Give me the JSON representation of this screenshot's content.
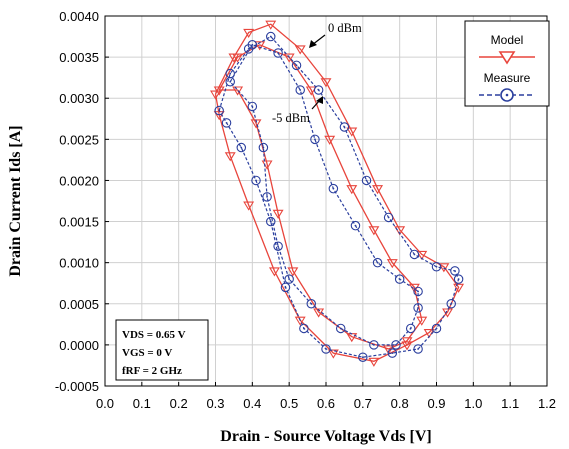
{
  "chart_data": {
    "type": "line",
    "xlabel": "Drain - Source Voltage Vds [V]",
    "ylabel": "Drain Current Ids [A]",
    "xlim": [
      0.0,
      1.2
    ],
    "ylim": [
      -0.0005,
      0.004
    ],
    "x_ticks": [
      "0.0",
      "0.1",
      "0.2",
      "0.3",
      "0.4",
      "0.5",
      "0.6",
      "0.7",
      "0.8",
      "0.9",
      "1.0",
      "1.1",
      "1.2"
    ],
    "y_ticks": [
      "0.0040",
      "0.0035",
      "0.0030",
      "0.0025",
      "0.0020",
      "0.0015",
      "0.0010",
      "0.0005",
      "0.0000",
      "-0.0005"
    ],
    "grid": true,
    "legend_position": "top-right",
    "legend": [
      {
        "label": "Model",
        "color": "#e8453c",
        "line": "solid",
        "marker": "triangle-down"
      },
      {
        "label": "Measure",
        "color": "#2b3f9e",
        "line": "dashed",
        "marker": "circle"
      }
    ],
    "annotations": [
      "0 dBm",
      "-5 dBm"
    ],
    "conditions": [
      "VDS = 0.65 V",
      "VGS = 0 V",
      "fRF = 2 GHz"
    ],
    "series": [
      {
        "name": "Model",
        "power": "0 dBm",
        "color": "#e8453c",
        "style": "solid",
        "marker": "triangle-down",
        "points": [
          [
            0.3,
            0.00305
          ],
          [
            0.35,
            0.0035
          ],
          [
            0.39,
            0.0038
          ],
          [
            0.45,
            0.0039
          ],
          [
            0.53,
            0.0036
          ],
          [
            0.6,
            0.0032
          ],
          [
            0.67,
            0.0026
          ],
          [
            0.74,
            0.0019
          ],
          [
            0.8,
            0.0014
          ],
          [
            0.86,
            0.0011
          ],
          [
            0.92,
            0.00095
          ],
          [
            0.96,
            0.0007
          ],
          [
            0.93,
            0.0004
          ],
          [
            0.88,
            0.00015
          ],
          [
            0.82,
            0.0
          ],
          [
            0.73,
            -0.0002
          ],
          [
            0.62,
            -0.0001
          ],
          [
            0.53,
            0.0003
          ],
          [
            0.46,
            0.0009
          ],
          [
            0.39,
            0.0017
          ],
          [
            0.34,
            0.0023
          ],
          [
            0.31,
            0.0028
          ],
          [
            0.3,
            0.00305
          ]
        ]
      },
      {
        "name": "Model",
        "power": "-5 dBm",
        "color": "#e8453c",
        "style": "solid",
        "marker": "triangle-down",
        "points": [
          [
            0.31,
            0.0031
          ],
          [
            0.36,
            0.0035
          ],
          [
            0.42,
            0.00365
          ],
          [
            0.5,
            0.0035
          ],
          [
            0.56,
            0.0031
          ],
          [
            0.61,
            0.0025
          ],
          [
            0.67,
            0.0019
          ],
          [
            0.73,
            0.0014
          ],
          [
            0.78,
            0.001
          ],
          [
            0.84,
            0.0007
          ],
          [
            0.86,
            0.0003
          ],
          [
            0.82,
            5e-05
          ],
          [
            0.77,
            -5e-05
          ],
          [
            0.67,
            0.0001
          ],
          [
            0.58,
            0.0004
          ],
          [
            0.51,
            0.0009
          ],
          [
            0.47,
            0.0016
          ],
          [
            0.44,
            0.0022
          ],
          [
            0.41,
            0.0027
          ],
          [
            0.36,
            0.0031
          ],
          [
            0.31,
            0.0031
          ]
        ]
      },
      {
        "name": "Measure",
        "power": "0 dBm",
        "color": "#2b3f9e",
        "style": "dashed",
        "marker": "circle",
        "points": [
          [
            0.31,
            0.00285
          ],
          [
            0.34,
            0.0033
          ],
          [
            0.39,
            0.0036
          ],
          [
            0.45,
            0.00375
          ],
          [
            0.52,
            0.0034
          ],
          [
            0.58,
            0.0031
          ],
          [
            0.65,
            0.00265
          ],
          [
            0.71,
            0.002
          ],
          [
            0.77,
            0.00155
          ],
          [
            0.84,
            0.0011
          ],
          [
            0.9,
            0.00095
          ],
          [
            0.95,
            0.0009
          ],
          [
            0.96,
            0.0008
          ],
          [
            0.94,
            0.0005
          ],
          [
            0.9,
            0.0002
          ],
          [
            0.85,
            -5e-05
          ],
          [
            0.78,
            -0.0001
          ],
          [
            0.7,
            -0.00015
          ],
          [
            0.6,
            -5e-05
          ],
          [
            0.54,
            0.0002
          ],
          [
            0.49,
            0.0007
          ],
          [
            0.45,
            0.0015
          ],
          [
            0.41,
            0.002
          ],
          [
            0.37,
            0.0024
          ],
          [
            0.33,
            0.0027
          ],
          [
            0.31,
            0.00285
          ]
        ]
      },
      {
        "name": "Measure",
        "power": "-5 dBm",
        "color": "#2b3f9e",
        "style": "dashed",
        "marker": "circle",
        "points": [
          [
            0.34,
            0.0032
          ],
          [
            0.4,
            0.00365
          ],
          [
            0.47,
            0.00355
          ],
          [
            0.53,
            0.0031
          ],
          [
            0.57,
            0.0025
          ],
          [
            0.62,
            0.0019
          ],
          [
            0.68,
            0.00145
          ],
          [
            0.74,
            0.001
          ],
          [
            0.8,
            0.0008
          ],
          [
            0.85,
            0.00065
          ],
          [
            0.85,
            0.00045
          ],
          [
            0.83,
            0.0002
          ],
          [
            0.79,
            0.0
          ],
          [
            0.73,
            0.0
          ],
          [
            0.64,
            0.0002
          ],
          [
            0.56,
            0.0005
          ],
          [
            0.5,
            0.0008
          ],
          [
            0.47,
            0.0012
          ],
          [
            0.44,
            0.0018
          ],
          [
            0.43,
            0.0024
          ],
          [
            0.4,
            0.0029
          ],
          [
            0.34,
            0.0032
          ]
        ]
      }
    ]
  }
}
